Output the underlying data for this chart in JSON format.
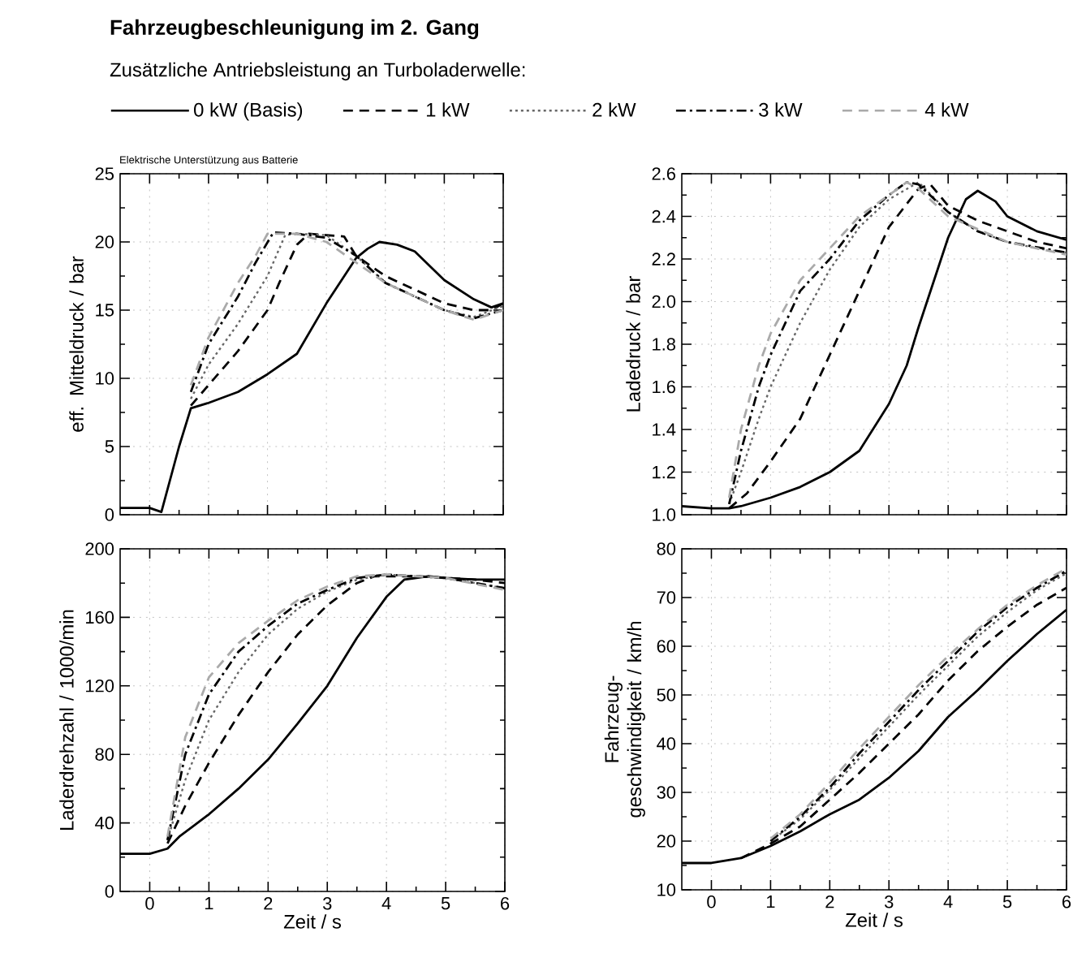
{
  "chart_data": [
    {
      "type": "line",
      "title": "Fahrzeugbeschleunigung im 2. Gang",
      "legend_title": "Zusätzliche Antriebsleistung an Turboladerwelle:",
      "annotations": [
        "Elektrische Unterstützung aus Batterie"
      ],
      "ylabel": "eff. Mitteldruck / bar",
      "xlim": [
        -0.5,
        6
      ],
      "xticks": [
        0,
        1,
        2,
        3,
        4,
        5,
        6
      ],
      "ylim": [
        0,
        25
      ],
      "yticks": [
        0,
        5,
        10,
        15,
        20,
        25
      ],
      "grid": true,
      "legend": "top",
      "tick_labels": "y",
      "series": [
        {
          "name": "0 kW (Basis)",
          "color": "#000000",
          "line_style": "solid",
          "x": [
            -0.5,
            0,
            0.2,
            0.5,
            0.7,
            1,
            1.5,
            2,
            2.5,
            3,
            3.5,
            3.7,
            3.9,
            4.2,
            4.5,
            5,
            5.5,
            5.8,
            6
          ],
          "values": [
            0.5,
            0.5,
            0.2,
            5,
            7.8,
            8.2,
            9,
            10.3,
            11.8,
            15.5,
            18.8,
            19.5,
            20,
            19.8,
            19.3,
            17.2,
            15.8,
            15.2,
            15.5
          ]
        },
        {
          "name": "1 kW",
          "color": "#000000",
          "line_style": "dashed",
          "x": [
            0.7,
            1,
            1.5,
            2,
            2.2,
            2.5,
            2.7,
            3,
            3.3,
            3.5,
            4,
            4.5,
            5,
            5.5,
            5.8,
            6
          ],
          "values": [
            8,
            9.5,
            12,
            15,
            17,
            19.8,
            20.6,
            20.5,
            20.4,
            19,
            17.5,
            16.5,
            15.5,
            15,
            15,
            15.5
          ]
        },
        {
          "name": "2 kW",
          "color": "#666666",
          "line_style": "dotted",
          "x": [
            0.7,
            1,
            1.5,
            2,
            2.3,
            2.5,
            3,
            3.5,
            4,
            4.5,
            5,
            5.5,
            6
          ],
          "values": [
            8.5,
            11,
            14,
            17.5,
            20.5,
            20.6,
            20.5,
            19,
            17,
            16,
            15,
            14.5,
            15.3
          ]
        },
        {
          "name": "3 kW",
          "color": "#000000",
          "line_style": "dashdot",
          "x": [
            0.7,
            1,
            1.5,
            1.8,
            2.1,
            2.5,
            3,
            3.5,
            4,
            5,
            5.5,
            6
          ],
          "values": [
            9,
            12.5,
            16,
            18.5,
            20.7,
            20.6,
            20.3,
            19,
            17,
            15,
            14.4,
            15
          ]
        },
        {
          "name": "4 kW",
          "color": "#aaaaaa",
          "line_style": "dashed",
          "x": [
            0.7,
            1,
            1.5,
            1.8,
            2,
            2.5,
            3,
            3.5,
            4,
            5,
            5.5,
            6
          ],
          "values": [
            9.5,
            13,
            17,
            19,
            20.6,
            20.6,
            20,
            18.5,
            17,
            15,
            14.3,
            15
          ]
        }
      ]
    },
    {
      "type": "line",
      "ylabel": "Ladedruck / bar",
      "xlim": [
        -0.5,
        6
      ],
      "xticks": [
        0,
        1,
        2,
        3,
        4,
        5,
        6
      ],
      "ylim": [
        1.0,
        2.6
      ],
      "yticks": [
        {
          "value": 1.0,
          "label": "1.0"
        },
        1.2,
        1.4,
        1.6,
        1.8,
        {
          "value": 2.0,
          "label": "2.0"
        },
        2.2,
        2.4,
        2.6
      ],
      "grid": true,
      "tick_labels": "y",
      "series": [
        {
          "color": "#000000",
          "line_style": "solid",
          "x": [
            -0.5,
            0,
            0.3,
            0.5,
            1,
            1.5,
            2,
            2.5,
            3,
            3.3,
            3.5,
            4,
            4.3,
            4.5,
            4.8,
            5,
            5.5,
            6
          ],
          "values": [
            1.04,
            1.03,
            1.03,
            1.04,
            1.08,
            1.13,
            1.2,
            1.3,
            1.52,
            1.7,
            1.88,
            2.3,
            2.48,
            2.52,
            2.47,
            2.4,
            2.33,
            2.29
          ]
        },
        {
          "color": "#000000",
          "line_style": "dashed",
          "x": [
            0.3,
            0.6,
            1,
            1.5,
            2,
            2.5,
            3,
            3.5,
            3.7,
            4,
            4.5,
            5,
            5.5,
            6
          ],
          "values": [
            1.03,
            1.1,
            1.25,
            1.45,
            1.75,
            2.05,
            2.35,
            2.53,
            2.55,
            2.45,
            2.38,
            2.33,
            2.28,
            2.25
          ]
        },
        {
          "color": "#666666",
          "line_style": "dotted",
          "x": [
            0.3,
            0.5,
            0.8,
            1,
            1.5,
            2,
            2.5,
            3,
            3.5,
            4,
            4.5,
            5,
            5.5,
            6
          ],
          "values": [
            1.05,
            1.2,
            1.45,
            1.6,
            1.9,
            2.15,
            2.35,
            2.48,
            2.56,
            2.42,
            2.33,
            2.28,
            2.25,
            2.23
          ]
        },
        {
          "color": "#000000",
          "line_style": "dashdot",
          "x": [
            0.3,
            0.5,
            0.8,
            1,
            1.5,
            2,
            2.5,
            3,
            3.3,
            3.5,
            4,
            4.5,
            5,
            6
          ],
          "values": [
            1.05,
            1.3,
            1.6,
            1.75,
            2.05,
            2.2,
            2.38,
            2.5,
            2.56,
            2.55,
            2.42,
            2.33,
            2.28,
            2.23
          ]
        },
        {
          "color": "#aaaaaa",
          "line_style": "dashed",
          "x": [
            0.3,
            0.5,
            0.8,
            1,
            1.5,
            2,
            2.5,
            3,
            3.3,
            3.5,
            4,
            5,
            6
          ],
          "values": [
            1.08,
            1.4,
            1.7,
            1.85,
            2.1,
            2.25,
            2.4,
            2.5,
            2.56,
            2.53,
            2.4,
            2.28,
            2.22
          ]
        }
      ]
    },
    {
      "type": "line",
      "ylabel": "Laderdrehzahl / 1000/min",
      "xlabel": "Zeit / s",
      "xlim": [
        -0.5,
        6
      ],
      "xticks": [
        0,
        1,
        2,
        3,
        4,
        5,
        6
      ],
      "ylim": [
        0,
        200
      ],
      "yticks": [
        0,
        40,
        80,
        120,
        160,
        200
      ],
      "grid": true,
      "series": [
        {
          "color": "#000000",
          "line_style": "solid",
          "x": [
            -0.5,
            0,
            0.3,
            0.5,
            1,
            1.5,
            2,
            2.5,
            3,
            3.5,
            4,
            4.3,
            4.7,
            5,
            5.5,
            6
          ],
          "values": [
            22,
            22,
            25,
            32,
            45,
            60,
            77,
            98,
            120,
            148,
            172,
            182,
            184,
            183,
            182,
            182
          ]
        },
        {
          "color": "#000000",
          "line_style": "dashed",
          "x": [
            0.3,
            0.6,
            1,
            1.5,
            2,
            2.5,
            3,
            3.5,
            3.8,
            4.5,
            5.5,
            6
          ],
          "values": [
            28,
            50,
            75,
            103,
            128,
            150,
            167,
            180,
            184,
            184,
            182,
            180
          ]
        },
        {
          "color": "#666666",
          "line_style": "dotted",
          "x": [
            0.3,
            0.6,
            1,
            1.5,
            2,
            2.5,
            3,
            3.5,
            4,
            5,
            6
          ],
          "values": [
            30,
            65,
            100,
            128,
            150,
            165,
            175,
            182,
            185,
            183,
            177
          ]
        },
        {
          "color": "#000000",
          "line_style": "dashdot",
          "x": [
            0.3,
            0.6,
            1,
            1.5,
            2,
            2.5,
            3,
            3.5,
            4,
            5,
            6
          ],
          "values": [
            30,
            80,
            115,
            140,
            155,
            168,
            176,
            183,
            185,
            183,
            177
          ]
        },
        {
          "color": "#aaaaaa",
          "line_style": "dashed",
          "x": [
            0.3,
            0.6,
            1,
            1.5,
            2,
            2.5,
            3,
            3.5,
            4,
            5,
            6
          ],
          "values": [
            32,
            90,
            125,
            145,
            158,
            170,
            178,
            184,
            185,
            183,
            176
          ]
        }
      ]
    },
    {
      "type": "line",
      "ylabel": "Fahrzeug-geschwindigkeit / km/h",
      "xlabel": "Zeit / s",
      "xlim": [
        -0.5,
        6
      ],
      "xticks": [
        0,
        1,
        2,
        3,
        4,
        5,
        6
      ],
      "ylim": [
        10,
        80
      ],
      "yticks": [
        10,
        20,
        30,
        40,
        50,
        60,
        70,
        80
      ],
      "grid": true,
      "series": [
        {
          "color": "#000000",
          "line_style": "solid",
          "x": [
            -0.5,
            0,
            0.5,
            1,
            1.5,
            2,
            2.5,
            3,
            3.5,
            4,
            4.5,
            5,
            5.5,
            6
          ],
          "values": [
            15.5,
            15.5,
            16.5,
            19,
            22,
            25.5,
            28.5,
            33,
            38.5,
            45.5,
            51,
            57,
            62.5,
            67.5
          ]
        },
        {
          "color": "#000000",
          "line_style": "dashed",
          "x": [
            0.5,
            1,
            1.5,
            2,
            2.5,
            3,
            3.5,
            4,
            4.5,
            5,
            5.5,
            6
          ],
          "values": [
            16.5,
            19.5,
            23,
            28.5,
            34,
            40,
            46,
            53,
            59,
            64,
            68.5,
            72
          ]
        },
        {
          "color": "#666666",
          "line_style": "dotted",
          "x": [
            1,
            1.5,
            2,
            2.5,
            3,
            3.5,
            4,
            4.5,
            5,
            5.5,
            6
          ],
          "values": [
            20,
            24.5,
            30.5,
            37,
            43.5,
            50,
            56,
            62,
            67,
            71.5,
            75
          ]
        },
        {
          "color": "#000000",
          "line_style": "dashdot",
          "x": [
            1,
            1.5,
            2,
            2.5,
            3,
            3.5,
            4,
            4.5,
            5,
            5.5,
            6
          ],
          "values": [
            20,
            25,
            31,
            38,
            44.5,
            51,
            57,
            63,
            68,
            72,
            75.5
          ]
        },
        {
          "color": "#aaaaaa",
          "line_style": "dashed",
          "x": [
            1,
            1.5,
            2,
            2.5,
            3,
            3.5,
            4,
            4.5,
            5,
            5.5,
            6
          ],
          "values": [
            20.5,
            25.5,
            32,
            39,
            45.5,
            52,
            58,
            63.5,
            68.5,
            72.5,
            76
          ]
        }
      ]
    }
  ]
}
